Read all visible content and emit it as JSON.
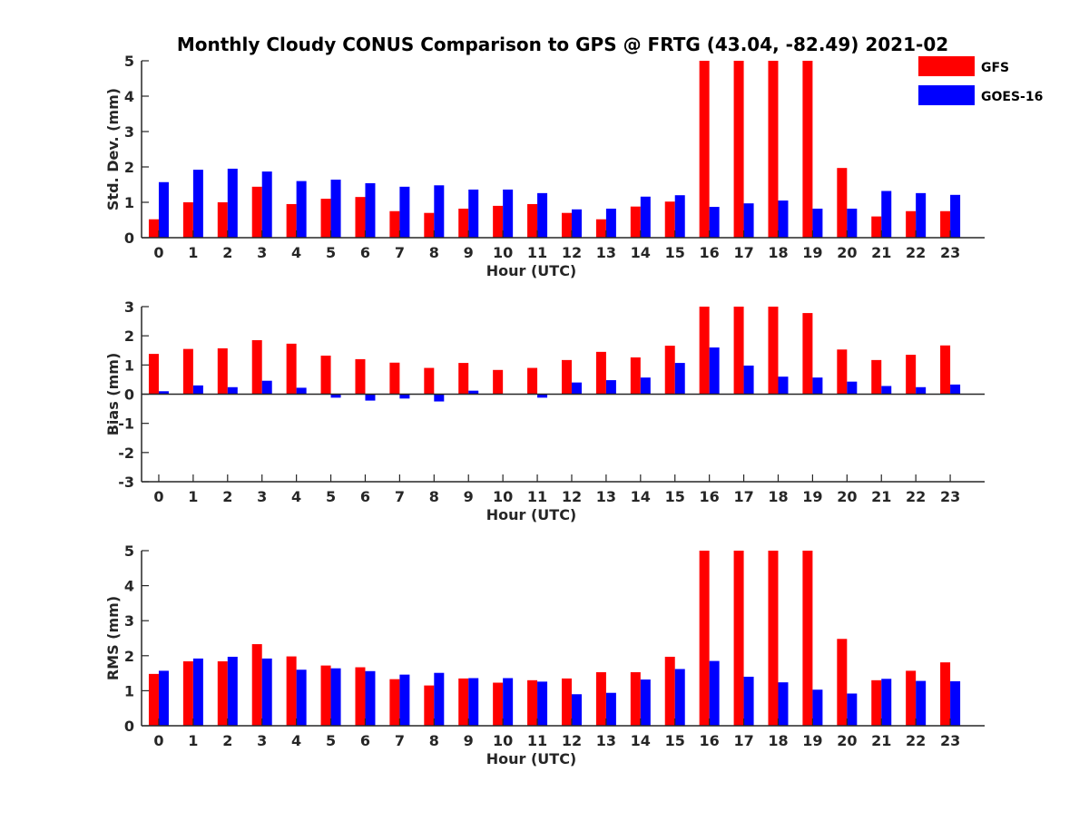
{
  "chart_data": {
    "type": "bar",
    "title": "Monthly Cloudy CONUS Comparison to GPS @ FRTG (43.04, -82.49) 2021-02",
    "categories": [
      "0",
      "1",
      "2",
      "3",
      "4",
      "5",
      "6",
      "7",
      "8",
      "9",
      "10",
      "11",
      "12",
      "13",
      "14",
      "15",
      "16",
      "17",
      "18",
      "19",
      "20",
      "21",
      "22",
      "23"
    ],
    "legend": {
      "placement": "top-right",
      "entries": [
        {
          "name": "GFS",
          "color": "#ff0000"
        },
        {
          "name": "GOES-16",
          "color": "#0000ff"
        }
      ]
    },
    "panels": [
      {
        "id": "std",
        "xlabel": "Hour (UTC)",
        "ylabel": "Std. Dev. (mm)",
        "ylim": [
          0,
          5
        ],
        "yticks": [
          "0",
          "1",
          "2",
          "3",
          "4",
          "5"
        ],
        "series": [
          {
            "name": "GFS",
            "color": "#ff0000",
            "values": [
              0.52,
              1.0,
              1.0,
              1.44,
              0.95,
              1.1,
              1.15,
              0.75,
              0.7,
              0.82,
              0.9,
              0.95,
              0.7,
              0.52,
              0.88,
              1.02,
              5,
              5,
              5,
              5,
              1.97,
              0.6,
              0.75,
              0.75
            ]
          },
          {
            "name": "GOES-16",
            "color": "#0000ff",
            "values": [
              1.57,
              1.92,
              1.95,
              1.87,
              1.6,
              1.64,
              1.54,
              1.44,
              1.48,
              1.36,
              1.36,
              1.26,
              0.8,
              0.82,
              1.16,
              1.2,
              0.87,
              0.97,
              1.05,
              0.82,
              0.82,
              1.32,
              1.26,
              1.21
            ]
          }
        ]
      },
      {
        "id": "bias",
        "xlabel": "Hour (UTC)",
        "ylabel": "Bias (mm)",
        "ylim": [
          -3,
          3
        ],
        "yticks": [
          "-3",
          "-2",
          "-1",
          "0",
          "1",
          "2",
          "3"
        ],
        "series": [
          {
            "name": "GFS",
            "color": "#ff0000",
            "values": [
              1.38,
              1.55,
              1.57,
              1.85,
              1.73,
              1.32,
              1.2,
              1.08,
              0.9,
              1.07,
              0.83,
              0.9,
              1.17,
              1.45,
              1.26,
              1.66,
              3,
              3,
              3,
              2.78,
              1.53,
              1.17,
              1.35,
              1.67
            ]
          },
          {
            "name": "GOES-16",
            "color": "#0000ff",
            "values": [
              0.1,
              0.3,
              0.24,
              0.46,
              0.22,
              -0.12,
              -0.22,
              -0.15,
              -0.25,
              0.12,
              0.0,
              -0.12,
              0.4,
              0.48,
              0.57,
              1.07,
              1.6,
              0.98,
              0.6,
              0.57,
              0.43,
              0.28,
              0.24,
              0.33
            ]
          }
        ]
      },
      {
        "id": "rms",
        "xlabel": "Hour (UTC)",
        "ylabel": "RMS (mm)",
        "ylim": [
          0,
          5
        ],
        "yticks": [
          "0",
          "1",
          "2",
          "3",
          "4",
          "5"
        ],
        "series": [
          {
            "name": "GFS",
            "color": "#ff0000",
            "values": [
              1.48,
              1.84,
              1.84,
              2.33,
              1.98,
              1.72,
              1.67,
              1.33,
              1.15,
              1.35,
              1.23,
              1.3,
              1.35,
              1.53,
              1.53,
              1.97,
              5,
              5,
              5,
              5,
              2.48,
              1.3,
              1.57,
              1.81
            ]
          },
          {
            "name": "GOES-16",
            "color": "#0000ff",
            "values": [
              1.57,
              1.92,
              1.97,
              1.92,
              1.6,
              1.64,
              1.56,
              1.46,
              1.51,
              1.36,
              1.36,
              1.26,
              0.9,
              0.94,
              1.32,
              1.62,
              1.85,
              1.4,
              1.24,
              1.03,
              0.92,
              1.34,
              1.28,
              1.27
            ]
          }
        ]
      }
    ]
  }
}
